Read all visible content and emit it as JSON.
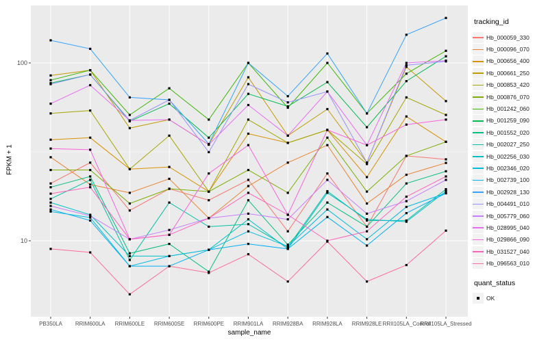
{
  "chart_data": {
    "type": "line",
    "title": "",
    "xlabel": "sample_name",
    "ylabel": "FPKM + 1",
    "y_scale": "log10",
    "ylim": [
      4.3,
      210
    ],
    "grid": true,
    "panel_bg": "#EBEBEB",
    "grid_color": "#FFFFFF",
    "marker": {
      "shape": "square",
      "color": "#000000"
    },
    "y_ticks": [
      {
        "label": "10",
        "value": 10
      },
      {
        "label": "100",
        "value": 100
      }
    ],
    "y_minor": [
      31.62
    ],
    "categories": [
      "PB350LA",
      "RRIM600LA",
      "RRIM600LE",
      "RRIM600SE",
      "RRIM600PE",
      "RRIM901LA",
      "RRIM928BA",
      "RRIM928LA",
      "RRIM928LE",
      "RRII105LA_Control",
      "RRII105LA_Stressed"
    ],
    "legend": {
      "title": "tracking_id",
      "position": "right"
    },
    "quant_legend": {
      "title": "quant_status",
      "items": [
        {
          "label": "OK"
        }
      ]
    },
    "series": [
      {
        "name": "Hb_000059_330",
        "color": "#F8766D",
        "values": [
          21,
          27.5,
          14.8,
          19.6,
          16.9,
          22,
          11.3,
          23.9,
          12,
          30,
          28.7
        ]
      },
      {
        "name": "Hb_000096_070",
        "color": "#EA8331",
        "values": [
          29.5,
          20.7,
          18.6,
          22.3,
          13.4,
          20.3,
          27.5,
          34.5,
          16.2,
          23.5,
          27.4
        ]
      },
      {
        "name": "Hb_000656_400",
        "color": "#D89000",
        "values": [
          37,
          38,
          25.3,
          26,
          18.9,
          40,
          35.5,
          42,
          22.8,
          50,
          36
        ]
      },
      {
        "name": "Hb_000661_250",
        "color": "#C09B00",
        "values": [
          85,
          91,
          43,
          48,
          34.7,
          83,
          39,
          55,
          27.5,
          95,
          61
        ]
      },
      {
        "name": "Hb_000853_420",
        "color": "#A3A500",
        "values": [
          52,
          54,
          25.3,
          39,
          18.9,
          48,
          35.5,
          42,
          27,
          64,
          51
        ]
      },
      {
        "name": "Hb_000876_070",
        "color": "#7CAE00",
        "values": [
          25,
          25,
          16.2,
          19.6,
          18.9,
          25,
          18.6,
          38,
          18.9,
          30,
          36
        ]
      },
      {
        "name": "Hb_001242_060",
        "color": "#39B600",
        "values": [
          80,
          91,
          51,
          72,
          48,
          100,
          56,
          100,
          52,
          87,
          117
        ]
      },
      {
        "name": "Hb_001259_090",
        "color": "#00BB4E",
        "values": [
          77,
          86,
          47,
          59,
          38,
          67,
          57,
          78,
          43.5,
          79,
          109
        ]
      },
      {
        "name": "Hb_001552_020",
        "color": "#00BF7D",
        "values": [
          20,
          23,
          8.5,
          9.6,
          6.7,
          16.9,
          9.5,
          16.4,
          12,
          21,
          24.6
        ]
      },
      {
        "name": "Hb_002027_250",
        "color": "#00C1A3",
        "values": [
          17.2,
          22,
          7.8,
          16.4,
          12,
          12.4,
          9.2,
          19,
          13,
          13,
          19.5
        ]
      },
      {
        "name": "Hb_002256_030",
        "color": "#00BFC4",
        "values": [
          16.4,
          14,
          8.2,
          8.2,
          8.9,
          13.2,
          9,
          18.6,
          13.2,
          12.8,
          19
        ]
      },
      {
        "name": "Hb_002346_020",
        "color": "#00BAE0",
        "values": [
          14.6,
          13.5,
          7.2,
          8.2,
          8.9,
          11.3,
          9.3,
          15,
          10.2,
          15.5,
          18.5
        ]
      },
      {
        "name": "Hb_002739_100",
        "color": "#00B0F6",
        "values": [
          15,
          13,
          7.2,
          7.2,
          8.9,
          9.6,
          9,
          13.6,
          9.4,
          14.3,
          18.5
        ]
      },
      {
        "name": "Hb_002928_130",
        "color": "#35A2FF",
        "values": [
          134,
          120,
          64,
          62,
          35,
          100,
          65,
          113,
          52,
          144,
          179
        ]
      },
      {
        "name": "Hb_004491_010",
        "color": "#9590FF",
        "values": [
          76,
          86,
          47.5,
          62,
          31.5,
          76,
          60,
          69,
          27.5,
          97,
          102
        ]
      },
      {
        "name": "Hb_005779_060",
        "color": "#C77CFF",
        "values": [
          15.7,
          13.8,
          10.2,
          11.5,
          13.4,
          14.2,
          13.2,
          22,
          14.2,
          16.7,
          22
        ]
      },
      {
        "name": "Hb_028995_040",
        "color": "#E76BF3",
        "values": [
          59,
          75,
          47.5,
          48,
          34.7,
          58,
          39,
          69,
          34.5,
          100,
          103
        ]
      },
      {
        "name": "Hb_029866_090",
        "color": "#FA62DB",
        "values": [
          33,
          32.5,
          10.2,
          10.8,
          23.9,
          34.5,
          14,
          42,
          34.5,
          45,
          48
        ]
      },
      {
        "name": "Hb_031527_040",
        "color": "#FF62BC",
        "values": [
          18.4,
          20,
          10.2,
          10.8,
          13.4,
          18.6,
          14,
          10,
          11.3,
          17.7,
          23
        ]
      },
      {
        "name": "Hb_096563_010",
        "color": "#FF6A98",
        "values": [
          9,
          8.6,
          5,
          7.2,
          6.6,
          8.4,
          5.9,
          9.9,
          5.9,
          7.3,
          11.4
        ]
      }
    ]
  }
}
